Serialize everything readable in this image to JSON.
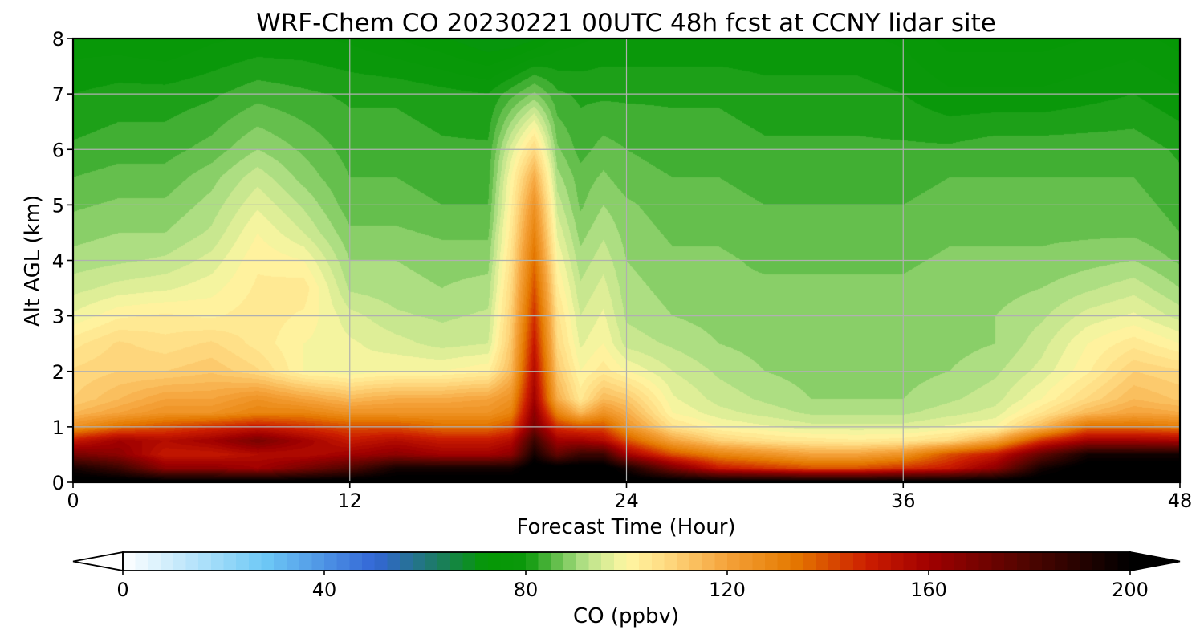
{
  "chart_data": {
    "type": "heatmap",
    "title": "WRF-Chem CO  20230221 00UTC 48h fcst at CCNY lidar site",
    "xlabel": "Forecast Time (Hour)",
    "ylabel": "Alt AGL (km)",
    "xlim": [
      0,
      48
    ],
    "ylim": [
      0,
      8
    ],
    "x_ticks": [
      "0",
      "12",
      "24",
      "36",
      "48"
    ],
    "y_ticks": [
      "0",
      "1",
      "2",
      "3",
      "4",
      "5",
      "6",
      "7",
      "8"
    ],
    "grid": true,
    "x_hours": [
      0,
      2,
      4,
      6,
      8,
      10,
      12,
      14,
      16,
      18,
      19,
      20,
      21,
      22,
      23,
      24,
      26,
      28,
      30,
      32,
      34,
      36,
      38,
      40,
      42,
      44,
      46,
      48
    ],
    "y_km": [
      0,
      0.25,
      0.5,
      0.75,
      1,
      1.25,
      1.5,
      2,
      2.5,
      3,
      3.5,
      4,
      4.5,
      5,
      5.5,
      6,
      7,
      8
    ],
    "co_ppbv": [
      [
        205,
        205,
        205,
        205,
        205,
        205,
        205,
        205,
        205,
        205,
        205,
        205,
        205,
        205,
        205,
        205,
        205,
        205,
        205,
        205,
        205,
        205,
        205,
        205,
        205,
        205,
        205,
        205
      ],
      [
        195,
        185,
        165,
        165,
        160,
        170,
        180,
        195,
        195,
        195,
        195,
        205,
        205,
        205,
        205,
        195,
        170,
        150,
        145,
        140,
        140,
        145,
        150,
        165,
        195,
        205,
        205,
        205
      ],
      [
        170,
        165,
        150,
        150,
        155,
        155,
        160,
        165,
        160,
        160,
        165,
        195,
        175,
        185,
        185,
        160,
        140,
        130,
        125,
        120,
        120,
        125,
        140,
        150,
        175,
        195,
        195,
        195
      ],
      [
        150,
        160,
        155,
        160,
        170,
        160,
        150,
        155,
        150,
        150,
        155,
        185,
        160,
        160,
        155,
        140,
        120,
        110,
        106,
        104,
        103,
        104,
        108,
        120,
        145,
        160,
        160,
        158
      ],
      [
        125,
        135,
        140,
        145,
        150,
        145,
        140,
        140,
        135,
        135,
        140,
        170,
        145,
        140,
        140,
        125,
        106,
        100,
        98,
        96,
        96,
        96,
        98,
        100,
        115,
        135,
        135,
        132
      ],
      [
        115,
        120,
        125,
        125,
        130,
        130,
        125,
        125,
        125,
        125,
        130,
        165,
        130,
        115,
        125,
        118,
        100,
        96,
        94,
        92,
        92,
        92,
        94,
        96,
        105,
        115,
        120,
        118
      ],
      [
        110,
        115,
        120,
        120,
        125,
        120,
        115,
        118,
        118,
        120,
        125,
        160,
        118,
        104,
        115,
        112,
        98,
        94,
        92,
        90,
        90,
        90,
        92,
        94,
        100,
        108,
        115,
        112
      ],
      [
        108,
        110,
        110,
        112,
        108,
        100,
        98,
        100,
        100,
        102,
        115,
        155,
        112,
        100,
        104,
        100,
        95,
        92,
        90,
        89,
        89,
        89,
        90,
        92,
        96,
        102,
        110,
        108
      ],
      [
        104,
        108,
        106,
        108,
        104,
        100,
        98,
        96,
        94,
        95,
        112,
        150,
        108,
        97,
        100,
        94,
        92,
        90,
        89,
        88,
        88,
        88,
        89,
        90,
        94,
        100,
        104,
        100
      ],
      [
        98,
        102,
        103,
        102,
        104,
        102,
        96,
        93,
        92,
        93,
        110,
        145,
        106,
        95,
        98,
        92,
        90,
        89,
        88,
        88,
        88,
        88,
        89,
        90,
        92,
        96,
        98,
        94
      ],
      [
        94,
        96,
        97,
        99,
        103,
        104,
        92,
        91,
        90,
        91,
        108,
        140,
        103,
        93,
        96,
        91,
        89,
        88,
        88,
        88,
        88,
        88,
        89,
        89,
        90,
        92,
        94,
        90
      ],
      [
        91,
        92,
        93,
        96,
        102,
        100,
        90,
        90,
        89,
        89,
        106,
        135,
        100,
        91,
        94,
        90,
        88,
        88,
        87,
        87,
        87,
        87,
        88,
        88,
        88,
        89,
        90,
        87
      ],
      [
        89,
        90,
        90,
        93,
        100,
        95,
        88,
        88,
        87,
        87,
        104,
        130,
        97,
        89,
        92,
        89,
        87,
        87,
        86,
        86,
        86,
        86,
        87,
        87,
        87,
        87,
        87,
        85
      ],
      [
        87,
        88,
        88,
        91,
        97,
        92,
        86,
        86,
        85,
        85,
        102,
        125,
        94,
        87,
        90,
        88,
        86,
        86,
        85,
        85,
        85,
        85,
        86,
        86,
        86,
        86,
        86,
        84
      ],
      [
        85,
        86,
        86,
        89,
        94,
        89,
        85,
        85,
        84,
        84,
        100,
        118,
        91,
        86,
        88,
        86,
        85,
        85,
        84,
        84,
        84,
        84,
        85,
        85,
        85,
        85,
        85,
        83
      ],
      [
        83,
        84,
        84,
        86,
        90,
        87,
        84,
        84,
        83,
        83,
        96,
        108,
        88,
        84,
        86,
        85,
        84,
        84,
        83,
        83,
        83,
        83,
        83,
        84,
        84,
        84,
        84,
        82
      ],
      [
        80,
        81,
        81,
        82,
        84,
        83,
        82,
        82,
        81,
        80,
        84,
        88,
        83,
        82,
        82,
        82,
        82,
        82,
        81,
        81,
        81,
        80,
        78,
        78,
        78,
        79,
        80,
        78
      ],
      [
        76,
        76,
        75,
        77,
        78,
        78,
        77,
        75,
        73,
        70,
        70,
        72,
        76,
        77,
        78,
        78,
        78,
        78,
        78,
        78,
        78,
        77,
        74,
        74,
        74,
        75,
        76,
        74
      ]
    ],
    "colorbar": {
      "label": "CO  (ppbv)",
      "ticks": [
        "0",
        "40",
        "80",
        "120",
        "160",
        "200"
      ],
      "min": 0,
      "max": 200,
      "extend": "both",
      "stops": [
        [
          0,
          "#ffffff"
        ],
        [
          28,
          "#6ec9f6"
        ],
        [
          50,
          "#3366d6"
        ],
        [
          62,
          "#1d7a68"
        ],
        [
          72,
          "#059805"
        ],
        [
          80,
          "#0b980b"
        ],
        [
          92,
          "#b8e38a"
        ],
        [
          100,
          "#fff7a3"
        ],
        [
          108,
          "#ffd980"
        ],
        [
          120,
          "#f5a23a"
        ],
        [
          133,
          "#e57a00"
        ],
        [
          148,
          "#cc1d00"
        ],
        [
          160,
          "#a10000"
        ],
        [
          180,
          "#4d0500"
        ],
        [
          200,
          "#000000"
        ]
      ]
    }
  }
}
